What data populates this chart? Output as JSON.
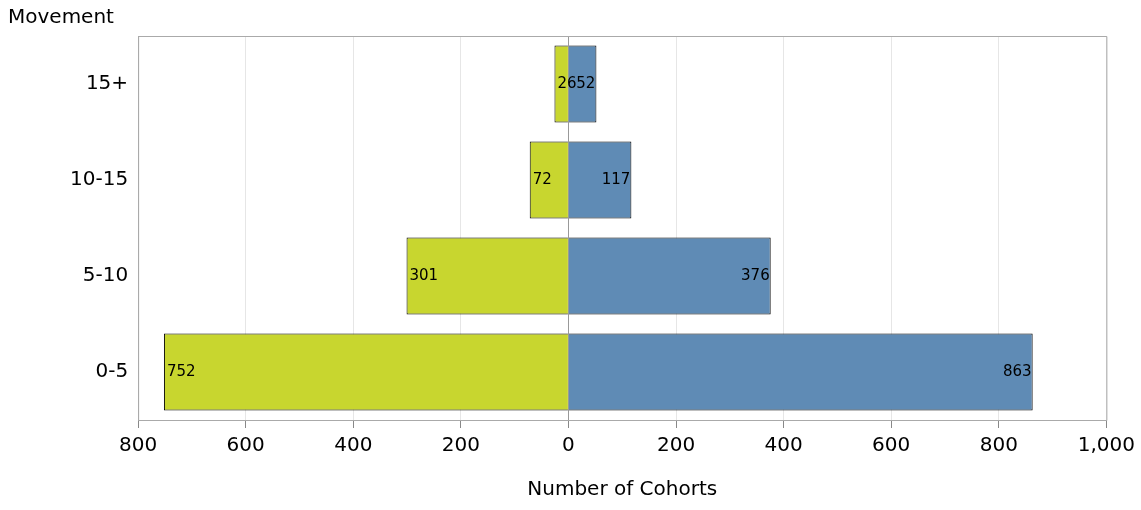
{
  "chart_data": {
    "type": "bar",
    "orientation": "horizontal",
    "data_labels": true,
    "categories": [
      "15+",
      "10-15",
      "5-10",
      "0-5"
    ],
    "series": [
      {
        "color": "#c8d62f",
        "values": [
          26,
          72,
          301,
          752
        ],
        "base": [
          -26,
          -72,
          -301,
          -752
        ]
      },
      {
        "color": "#5f8bb5",
        "values": [
          52,
          117,
          376,
          863
        ]
      }
    ],
    "xlim": [
      -800,
      1000
    ],
    "xticks": [
      {
        "value": -800,
        "label": "800"
      },
      {
        "value": -600,
        "label": "600"
      },
      {
        "value": -400,
        "label": "400"
      },
      {
        "value": -200,
        "label": "200"
      },
      0,
      200,
      400,
      600,
      800,
      {
        "value": 1000,
        "label": "1,000"
      }
    ],
    "xlabel": "Number of Cohorts",
    "ylabel": "Movement",
    "grid": "x",
    "legend": false
  }
}
